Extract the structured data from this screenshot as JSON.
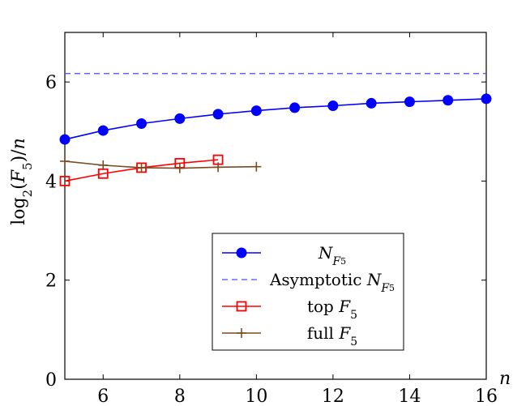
{
  "chart_data": {
    "type": "line",
    "title": "",
    "xlabel": "n",
    "ylabel": "log2(F5)/n",
    "xlim": [
      5,
      16
    ],
    "ylim": [
      0,
      7
    ],
    "xticks": [
      6,
      8,
      10,
      12,
      14,
      16
    ],
    "yticks": [
      0,
      2,
      4,
      6
    ],
    "grid": false,
    "legend_position": "bottom-center",
    "series": [
      {
        "name": "N_F5",
        "legend_text": "N",
        "legend_sub": "F",
        "legend_subsub": "5",
        "color": "#0000ff",
        "marker": "circle",
        "x": [
          5,
          6,
          7,
          8,
          9,
          10,
          11,
          12,
          13,
          14,
          15,
          16
        ],
        "y": [
          4.84,
          5.02,
          5.16,
          5.26,
          5.35,
          5.42,
          5.48,
          5.52,
          5.57,
          5.6,
          5.63,
          5.66
        ]
      },
      {
        "name": "Asymptotic N_F5",
        "legend_text": "Asymptotic N",
        "legend_sub": "F",
        "legend_subsub": "5",
        "color": "#4a4aff",
        "marker": "none",
        "dashed": true,
        "x": [
          5,
          16
        ],
        "y": [
          6.17,
          6.17
        ]
      },
      {
        "name": "top F5",
        "legend_text": "top F",
        "legend_sub": "5",
        "legend_subsub": "",
        "color": "#ff0000",
        "marker": "square",
        "x": [
          5,
          6,
          7,
          8,
          9
        ],
        "y": [
          4.0,
          4.15,
          4.27,
          4.36,
          4.43
        ]
      },
      {
        "name": "full F5",
        "legend_text": "full F",
        "legend_sub": "5",
        "legend_subsub": "",
        "color": "#7a4a22",
        "marker": "plus",
        "x": [
          5,
          6,
          7,
          8,
          9,
          10
        ],
        "y": [
          4.4,
          4.32,
          4.27,
          4.26,
          4.28,
          4.29
        ]
      }
    ]
  }
}
